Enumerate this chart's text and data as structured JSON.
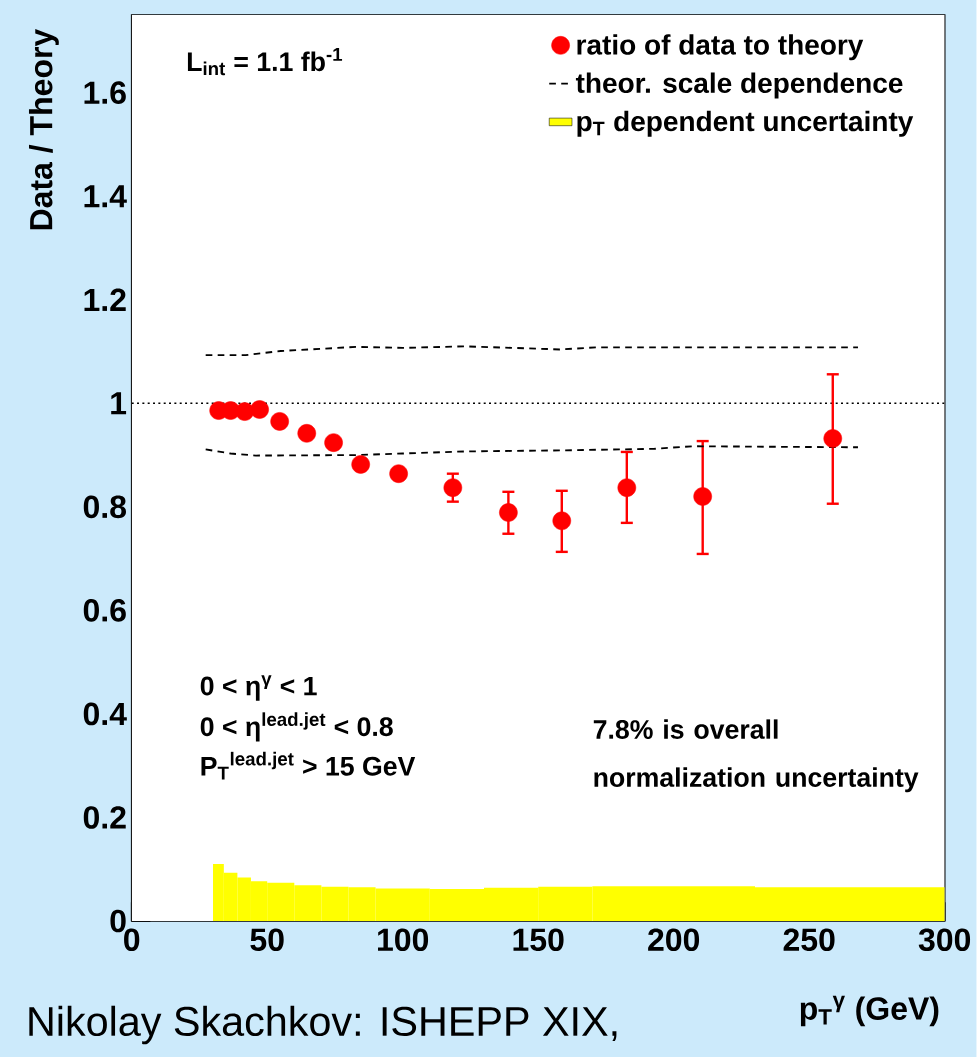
{
  "chart_data": {
    "type": "scatter",
    "ylabel": "Data / Theory",
    "xlabel": "p$_{T}$$^{γ}$ (GeV)",
    "xlim": [
      0,
      300
    ],
    "ylim": [
      0,
      1.75
    ],
    "xticks": [
      0,
      50,
      100,
      150,
      200,
      250,
      300
    ],
    "yticks": [
      0,
      0.2,
      0.4,
      0.6,
      0.8,
      1,
      1.2,
      1.4,
      1.6
    ],
    "legend": "top right",
    "ref_lines": [
      {
        "axis": "y",
        "value": 1,
        "color": "#000000",
        "line_style": "dotted"
      }
    ],
    "series": [
      {
        "name": "ratio of data to theory",
        "type": "scatter",
        "color": "#ff0000",
        "marker": "circle",
        "x": [
          32.1,
          36.5,
          41.7,
          47.2,
          54.6,
          64.6,
          74.5,
          84.5,
          98.5,
          118.5,
          139,
          158.7,
          182.7,
          210.7,
          258.7
        ],
        "values": [
          0.986,
          0.986,
          0.984,
          0.988,
          0.965,
          0.942,
          0.924,
          0.882,
          0.864,
          0.837,
          0.789,
          0.773,
          0.837,
          0.82,
          0.932
        ],
        "errors": [
          null,
          null,
          null,
          null,
          null,
          null,
          null,
          null,
          null,
          [
            0.81,
            0.864
          ],
          [
            0.748,
            0.829
          ],
          [
            0.713,
            0.831
          ],
          [
            0.769,
            0.906
          ],
          [
            0.709,
            0.927
          ],
          [
            0.806,
            1.056
          ]
        ]
      },
      {
        "name": "theor. scale dependence",
        "type": "line",
        "color": "#000000",
        "line_style": "dashed",
        "marker": "none",
        "x": [
          27.3,
          42,
          55,
          83,
          100,
          123,
          158,
          171.6,
          268
        ],
        "values": [
          1.093,
          1.093,
          1.101,
          1.109,
          1.107,
          1.11,
          1.104,
          1.108,
          1.108
        ]
      },
      {
        "type": "line",
        "color": "#000000",
        "line_style": "dashed",
        "marker": "none",
        "x": [
          27.3,
          36.5,
          45.8,
          83,
          100,
          123,
          158,
          192.6,
          207,
          268
        ],
        "values": [
          0.911,
          0.903,
          0.899,
          0.9,
          0.903,
          0.907,
          0.909,
          0.912,
          0.917,
          0.915
        ]
      },
      {
        "name": "p$_{T}$ dependent uncertainty",
        "type": "histogram",
        "color": "#ffff00",
        "bins": [
          30,
          34,
          39,
          44,
          50,
          60,
          70,
          80,
          90,
          110,
          130,
          150,
          170,
          230,
          300
        ],
        "values": [
          0.11,
          0.093,
          0.084,
          0.077,
          0.074,
          0.069,
          0.066,
          0.065,
          0.063,
          0.062,
          0.064,
          0.066,
          0.067,
          0.065
        ]
      }
    ],
    "annotations": [
      "L$_{int}$ = 1.1 fb$^{-1}$",
      "0 < η$^{γ}$ < 1",
      "0 < η$^{lead.jet}$ < 0.8",
      "P$_{T}$$^{lead.jet}$ > 15 GeV",
      "7.8% is overall normalization uncertainty",
      "Nikolay Skachkov: ISHEPP XIX,"
    ]
  }
}
